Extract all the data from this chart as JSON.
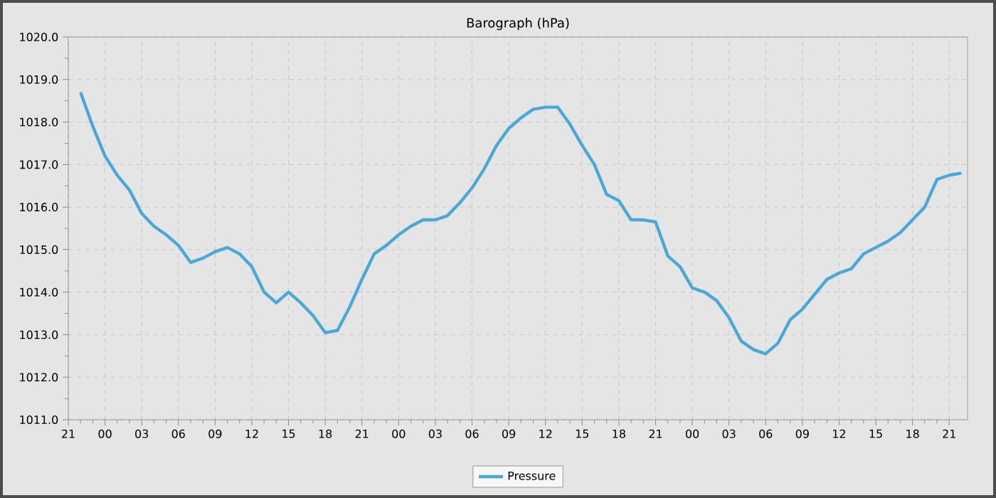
{
  "chart_data": {
    "type": "line",
    "title": "Barograph (hPa)",
    "categories": [
      "21",
      null,
      null,
      "00",
      null,
      null,
      "03",
      null,
      null,
      "06",
      null,
      null,
      "09",
      null,
      null,
      "12",
      null,
      null,
      "15",
      null,
      null,
      "18",
      null,
      null,
      "21",
      null,
      null,
      "00",
      null,
      null,
      "03",
      null,
      null,
      "06",
      null,
      null,
      "09",
      null,
      null,
      "12",
      null,
      null,
      "15",
      null,
      null,
      "18",
      null,
      null,
      "21",
      null,
      null,
      "00",
      null,
      null,
      "03",
      null,
      null,
      "06",
      null,
      null,
      "09",
      null,
      null,
      "12",
      null,
      null,
      "15",
      null,
      null,
      "18",
      null,
      null,
      "21",
      null
    ],
    "series": [
      {
        "name": "Pressure",
        "color": "#4aa8d8",
        "values": [
          null,
          1018.7,
          1017.9,
          1017.2,
          1016.75,
          1016.4,
          1015.85,
          1015.55,
          1015.35,
          1015.1,
          1014.7,
          1014.8,
          1014.95,
          1015.05,
          1014.9,
          1014.6,
          1014.0,
          1013.75,
          1014.0,
          1013.75,
          1013.45,
          1013.05,
          1013.1,
          1013.65,
          1014.3,
          1014.9,
          1015.1,
          1015.35,
          1015.55,
          1015.7,
          1015.7,
          1015.8,
          1016.1,
          1016.45,
          1016.9,
          1017.45,
          1017.85,
          1018.1,
          1018.3,
          1018.35,
          1018.35,
          1017.95,
          1017.45,
          1017.0,
          1016.3,
          1016.15,
          1015.7,
          1015.7,
          1015.65,
          1014.85,
          1014.6,
          1014.1,
          1014.0,
          1013.8,
          1013.4,
          1012.85,
          1012.65,
          1012.55,
          1012.8,
          1013.35,
          1013.6,
          1013.95,
          1014.3,
          1014.45,
          1014.55,
          1014.9,
          1015.05,
          1015.2,
          1015.4,
          1015.7,
          1016.0,
          1016.65,
          1016.75,
          1016.8
        ]
      }
    ],
    "ylim": [
      1011,
      1020
    ],
    "yticks": [
      {
        "value": 1011,
        "label": "1011.0"
      },
      {
        "value": 1012,
        "label": "1012.0"
      },
      {
        "value": 1013,
        "label": "1013.0"
      },
      {
        "value": 1014,
        "label": "1014.0"
      },
      {
        "value": 1015,
        "label": "1015.0"
      },
      {
        "value": 1016,
        "label": "1016.0"
      },
      {
        "value": 1017,
        "label": "1017.0"
      },
      {
        "value": 1018,
        "label": "1018.0"
      },
      {
        "value": 1019,
        "label": "1019.0"
      },
      {
        "value": 1020,
        "label": "1020.0"
      }
    ],
    "grid": true,
    "legend": "bottom",
    "marker": "none",
    "line_style": "solid"
  }
}
